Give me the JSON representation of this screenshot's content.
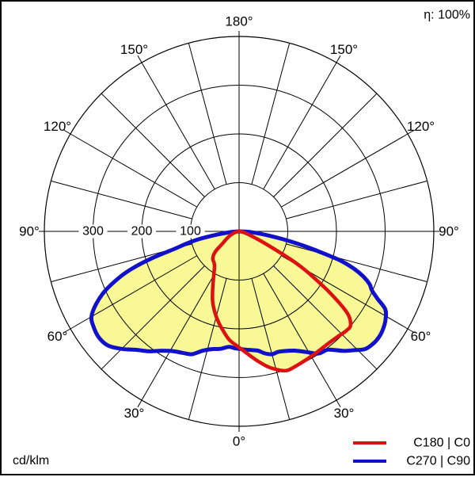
{
  "chart_data": {
    "type": "polar",
    "eta": "η: 100%",
    "unit": "cd/klm",
    "r_max": 400,
    "r_gridlines": [
      100,
      200,
      300
    ],
    "r_tick_labels": [
      {
        "value": 300,
        "label": "300"
      },
      {
        "value": 200,
        "label": "200"
      },
      {
        "value": 100,
        "label": "100"
      }
    ],
    "spoke_step_deg": 15,
    "tick_step_deg": 30,
    "angle_labels": [
      {
        "angle": 0,
        "label": "0°"
      },
      {
        "angle": 30,
        "label": "30°"
      },
      {
        "angle": 60,
        "label": "60°"
      },
      {
        "angle": 90,
        "label": "90°"
      },
      {
        "angle": 120,
        "label": "120°"
      },
      {
        "angle": 150,
        "label": "150°"
      },
      {
        "angle": 180,
        "label": "180°"
      },
      {
        "angle": -30,
        "label": "30°"
      },
      {
        "angle": -60,
        "label": "60°"
      },
      {
        "angle": -90,
        "label": "90°"
      },
      {
        "angle": -120,
        "label": "120°"
      },
      {
        "angle": -150,
        "label": "150°"
      }
    ],
    "fill_color": "#f8f896",
    "grid_color": "#000000",
    "series": [
      {
        "name": "C180 | C0",
        "color": "#dd1111",
        "width": 4.5,
        "points": [
          [
            -90,
            0
          ],
          [
            -78,
            6
          ],
          [
            -70,
            14
          ],
          [
            -64,
            22
          ],
          [
            -58,
            32
          ],
          [
            -53,
            45
          ],
          [
            -50,
            62
          ],
          [
            -47,
            72
          ],
          [
            -43,
            79
          ],
          [
            -39,
            82
          ],
          [
            -35,
            88
          ],
          [
            -30,
            104
          ],
          [
            -25,
            128
          ],
          [
            -21,
            152
          ],
          [
            -17,
            172
          ],
          [
            -13,
            190
          ],
          [
            -9,
            207
          ],
          [
            -5,
            224
          ],
          [
            0,
            238
          ],
          [
            4,
            252
          ],
          [
            8,
            268
          ],
          [
            12,
            284
          ],
          [
            16,
            296
          ],
          [
            19,
            302
          ],
          [
            23,
            300
          ],
          [
            28,
            297
          ],
          [
            33,
            295
          ],
          [
            38,
            294
          ],
          [
            43,
            296
          ],
          [
            47,
            300
          ],
          [
            50,
            299
          ],
          [
            53,
            278
          ],
          [
            56,
            225
          ],
          [
            59,
            168
          ],
          [
            61,
            132
          ],
          [
            63,
            88
          ],
          [
            66,
            50
          ],
          [
            70,
            26
          ],
          [
            76,
            12
          ],
          [
            83,
            5
          ],
          [
            90,
            0
          ]
        ]
      },
      {
        "name": "C270 | C90",
        "color": "#1111cc",
        "width": 5,
        "points": [
          [
            -90,
            0
          ],
          [
            -86,
            14
          ],
          [
            -83,
            32
          ],
          [
            -81,
            55
          ],
          [
            -79,
            85
          ],
          [
            -77,
            110
          ],
          [
            -75,
            135
          ],
          [
            -73,
            185
          ],
          [
            -71,
            230
          ],
          [
            -69,
            263
          ],
          [
            -66,
            302
          ],
          [
            -63,
            330
          ],
          [
            -60,
            350
          ],
          [
            -57,
            357
          ],
          [
            -53,
            361
          ],
          [
            -49,
            357
          ],
          [
            -45,
            341
          ],
          [
            -41,
            322
          ],
          [
            -37,
            308
          ],
          [
            -33,
            292
          ],
          [
            -29,
            281
          ],
          [
            -25,
            275
          ],
          [
            -21,
            270
          ],
          [
            -17,
            256
          ],
          [
            -13,
            248
          ],
          [
            -9,
            244
          ],
          [
            -5,
            238
          ],
          [
            -2,
            240
          ],
          [
            0,
            241
          ],
          [
            3,
            243
          ],
          [
            6,
            245
          ],
          [
            9,
            248
          ],
          [
            12,
            256
          ],
          [
            15,
            261
          ],
          [
            18,
            260
          ],
          [
            21,
            263
          ],
          [
            25,
            270
          ],
          [
            29,
            283
          ],
          [
            33,
            299
          ],
          [
            37,
            304
          ],
          [
            41,
            325
          ],
          [
            44,
            339
          ],
          [
            47,
            354
          ],
          [
            50,
            359
          ],
          [
            53,
            360
          ],
          [
            56,
            357
          ],
          [
            59,
            351
          ],
          [
            62,
            340
          ],
          [
            64,
            317
          ],
          [
            66,
            299
          ],
          [
            68,
            289
          ],
          [
            70,
            272
          ],
          [
            72,
            248
          ],
          [
            74,
            215
          ],
          [
            76,
            165
          ],
          [
            78,
            125
          ],
          [
            80,
            90
          ],
          [
            82,
            60
          ],
          [
            85,
            32
          ],
          [
            88,
            12
          ],
          [
            90,
            0
          ]
        ]
      }
    ],
    "legend": [
      {
        "label": "C180 | C0",
        "color": "#dd1111"
      },
      {
        "label": "C270 | C90",
        "color": "#1111cc"
      }
    ]
  }
}
